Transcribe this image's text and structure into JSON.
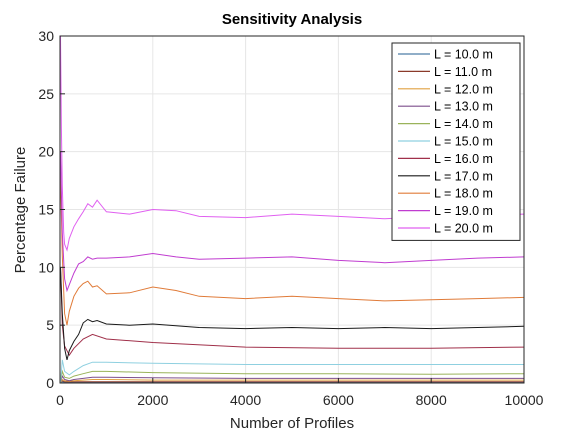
{
  "chart_data": {
    "type": "line",
    "title": "Sensitivity Analysis",
    "xlabel": "Number of Profiles",
    "ylabel": "Percentage Failure",
    "xlim": [
      0,
      10000
    ],
    "ylim": [
      0,
      30
    ],
    "xticks": [
      0,
      2000,
      4000,
      6000,
      8000,
      10000
    ],
    "yticks": [
      0,
      5,
      10,
      15,
      20,
      25,
      30
    ],
    "grid": true,
    "legend_position": "top-right",
    "series": [
      {
        "name": "L = 10.0 m",
        "color": "#4d7ea8",
        "x": [
          10,
          50,
          100,
          200,
          300,
          500,
          700,
          1000,
          2000,
          4000,
          6000,
          8000,
          10000
        ],
        "y": [
          0.0,
          0.1,
          0.05,
          0.05,
          0.05,
          0.05,
          0.05,
          0.05,
          0.05,
          0.05,
          0.05,
          0.05,
          0.05
        ]
      },
      {
        "name": "L = 11.0 m",
        "color": "#8b3a2a",
        "x": [
          10,
          50,
          100,
          200,
          300,
          500,
          700,
          1000,
          2000,
          4000,
          6000,
          8000,
          10000
        ],
        "y": [
          0.0,
          0.2,
          0.1,
          0.1,
          0.1,
          0.1,
          0.1,
          0.1,
          0.1,
          0.1,
          0.1,
          0.1,
          0.1
        ]
      },
      {
        "name": "L = 12.0 m",
        "color": "#e0a040",
        "x": [
          10,
          50,
          100,
          200,
          300,
          500,
          700,
          1000,
          2000,
          4000,
          6000,
          8000,
          10000
        ],
        "y": [
          0.0,
          0.3,
          0.2,
          0.15,
          0.2,
          0.25,
          0.3,
          0.3,
          0.25,
          0.25,
          0.25,
          0.25,
          0.25
        ]
      },
      {
        "name": "L = 13.0 m",
        "color": "#7d4e8c",
        "x": [
          10,
          50,
          100,
          200,
          300,
          500,
          700,
          1000,
          2000,
          4000,
          6000,
          8000,
          10000
        ],
        "y": [
          0.0,
          0.6,
          0.3,
          0.2,
          0.3,
          0.4,
          0.5,
          0.5,
          0.45,
          0.4,
          0.4,
          0.4,
          0.4
        ]
      },
      {
        "name": "L = 14.0 m",
        "color": "#9ab35a",
        "x": [
          10,
          50,
          100,
          200,
          300,
          500,
          700,
          1000,
          2000,
          4000,
          6000,
          8000,
          10000
        ],
        "y": [
          0.0,
          1.0,
          0.5,
          0.4,
          0.6,
          0.8,
          1.0,
          1.0,
          0.9,
          0.8,
          0.8,
          0.75,
          0.8
        ]
      },
      {
        "name": "L = 15.0 m",
        "color": "#8fd0e0",
        "x": [
          10,
          50,
          100,
          200,
          300,
          500,
          700,
          1000,
          2000,
          4000,
          6000,
          8000,
          10000
        ],
        "y": [
          0.0,
          2.0,
          1.0,
          0.7,
          1.0,
          1.5,
          1.8,
          1.8,
          1.7,
          1.6,
          1.6,
          1.6,
          1.6
        ]
      },
      {
        "name": "L = 16.0 m",
        "color": "#a0304a",
        "x": [
          10,
          50,
          100,
          200,
          300,
          500,
          700,
          1000,
          2000,
          4000,
          6000,
          8000,
          10000
        ],
        "y": [
          10.0,
          5.0,
          3.2,
          2.4,
          3.0,
          3.8,
          4.2,
          3.8,
          3.5,
          3.1,
          3.0,
          3.0,
          3.1
        ]
      },
      {
        "name": "L = 17.0 m",
        "color": "#1a1a1a",
        "x": [
          10,
          50,
          100,
          150,
          200,
          300,
          400,
          500,
          600,
          700,
          800,
          1000,
          1500,
          2000,
          3000,
          4000,
          5000,
          6000,
          7000,
          8000,
          9000,
          10000
        ],
        "y": [
          10.0,
          6.0,
          3.0,
          2.0,
          2.8,
          3.6,
          4.2,
          5.2,
          5.5,
          5.3,
          5.4,
          5.1,
          5.0,
          5.1,
          4.8,
          4.7,
          4.8,
          4.7,
          4.8,
          4.7,
          4.8,
          4.9
        ]
      },
      {
        "name": "L = 18.0 m",
        "color": "#e07b39",
        "x": [
          10,
          50,
          100,
          150,
          200,
          300,
          400,
          500,
          600,
          700,
          800,
          1000,
          1500,
          2000,
          2500,
          3000,
          4000,
          5000,
          6000,
          7000,
          8000,
          9000,
          10000
        ],
        "y": [
          18.0,
          11.0,
          6.0,
          5.0,
          6.2,
          7.5,
          8.2,
          8.6,
          8.8,
          8.3,
          8.4,
          7.7,
          7.8,
          8.3,
          8.0,
          7.5,
          7.3,
          7.5,
          7.3,
          7.1,
          7.2,
          7.3,
          7.4
        ]
      },
      {
        "name": "L = 19.0 m",
        "color": "#c03cd0",
        "x": [
          10,
          50,
          100,
          150,
          200,
          300,
          400,
          500,
          600,
          700,
          800,
          1000,
          1500,
          2000,
          2500,
          3000,
          4000,
          5000,
          6000,
          7000,
          8000,
          9000,
          10000
        ],
        "y": [
          20.0,
          13.0,
          9.0,
          8.0,
          8.5,
          9.5,
          10.3,
          10.5,
          10.9,
          10.7,
          10.8,
          10.8,
          10.9,
          11.2,
          10.9,
          10.7,
          10.8,
          10.9,
          10.6,
          10.4,
          10.6,
          10.8,
          10.9
        ]
      },
      {
        "name": "L = 20.0 m",
        "color": "#e060f0",
        "x": [
          10,
          30,
          50,
          80,
          100,
          150,
          200,
          300,
          400,
          500,
          600,
          700,
          800,
          1000,
          1500,
          2000,
          2500,
          3000,
          4000,
          5000,
          6000,
          7000,
          8000,
          9000,
          10000
        ],
        "y": [
          30.0,
          22.0,
          17.0,
          13.0,
          12.0,
          11.5,
          12.5,
          13.5,
          14.2,
          14.8,
          15.5,
          15.2,
          15.8,
          14.8,
          14.6,
          15.0,
          14.9,
          14.4,
          14.3,
          14.6,
          14.4,
          14.2,
          14.4,
          14.5,
          14.6
        ]
      }
    ]
  }
}
